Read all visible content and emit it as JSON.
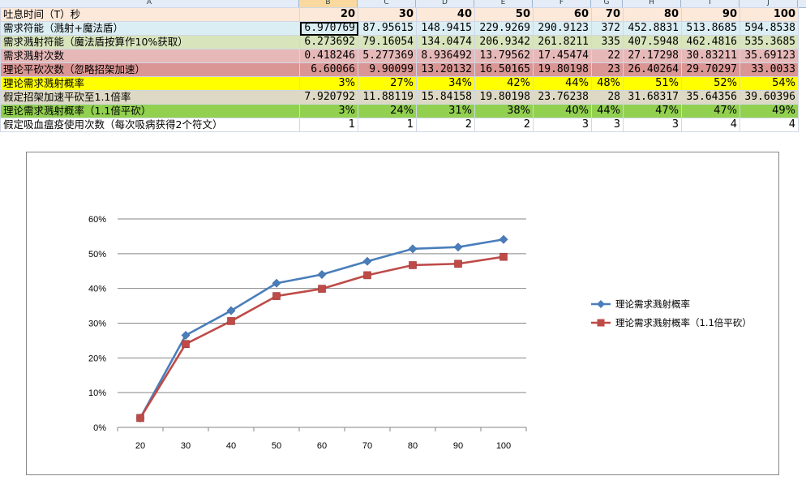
{
  "column_headers": [
    "A",
    "B",
    "C",
    "D",
    "E",
    "F",
    "G",
    "H",
    "I",
    "J"
  ],
  "selected_column": "B",
  "rows": [
    {
      "label": "吐息时间（T）秒",
      "cells": [
        "20",
        "30",
        "40",
        "50",
        "60",
        "70",
        "80",
        "90",
        "100"
      ]
    },
    {
      "label": "需求符能（溅射+魔法盾）",
      "cells": [
        "6.970769",
        "87.95615",
        "148.9415",
        "229.9269",
        "290.9123",
        "372",
        "452.8831",
        "513.8685",
        "594.8538"
      ]
    },
    {
      "label": "需求溅射符能（魔法盾按算作10%获取）",
      "cells": [
        "6.273692",
        "79.16054",
        "134.0474",
        "206.9342",
        "261.8211",
        "335",
        "407.5948",
        "462.4816",
        "535.3685"
      ]
    },
    {
      "label": "需求溅射次数",
      "cells": [
        "0.418246",
        "5.277369",
        "8.936492",
        "13.79562",
        "17.45474",
        "22",
        "27.17298",
        "30.83211",
        "35.69123"
      ]
    },
    {
      "label": "理论平砍次数（忽略招架加速）",
      "cells": [
        "6.60066",
        "9.90099",
        "13.20132",
        "16.50165",
        "19.80198",
        "23",
        "26.40264",
        "29.70297",
        "33.0033"
      ]
    },
    {
      "label": "理论需求溅射概率",
      "cells": [
        "3%",
        "27%",
        "34%",
        "42%",
        "44%",
        "48%",
        "51%",
        "52%",
        "54%"
      ]
    },
    {
      "label": "假定招架加速平砍至1.1倍率",
      "cells": [
        "7.920792",
        "11.88119",
        "15.84158",
        "19.80198",
        "23.76238",
        "28",
        "31.68317",
        "35.64356",
        "39.60396"
      ]
    },
    {
      "label": "理论需求溅射概率（1.1倍平砍）",
      "cells": [
        "3%",
        "24%",
        "31%",
        "38%",
        "40%",
        "44%",
        "47%",
        "47%",
        "49%"
      ]
    },
    {
      "label": "假定吸血瘟疫使用次数（每次吸病获得2个符文）",
      "cells": [
        "1",
        "1",
        "2",
        "2",
        "3",
        "3",
        "3",
        "4",
        "4"
      ]
    }
  ],
  "chart_data": {
    "type": "line",
    "categories": [
      "20",
      "30",
      "40",
      "50",
      "60",
      "70",
      "80",
      "90",
      "100"
    ],
    "y_tick_labels": [
      "0%",
      "10%",
      "20%",
      "30%",
      "40%",
      "50%",
      "60%"
    ],
    "ylim": [
      0,
      0.6
    ],
    "grid": true,
    "legend_placement": "right",
    "series": [
      {
        "name": "理论需求溅射概率",
        "marker": "diamond",
        "color": "#4a7ebb",
        "values": [
          0.027,
          0.265,
          0.336,
          0.415,
          0.44,
          0.478,
          0.514,
          0.519,
          0.541
        ]
      },
      {
        "name": "理论需求溅射概率（1.1倍平砍）",
        "marker": "square",
        "color": "#be4b48",
        "values": [
          0.027,
          0.24,
          0.306,
          0.378,
          0.399,
          0.438,
          0.467,
          0.471,
          0.491
        ]
      }
    ]
  }
}
